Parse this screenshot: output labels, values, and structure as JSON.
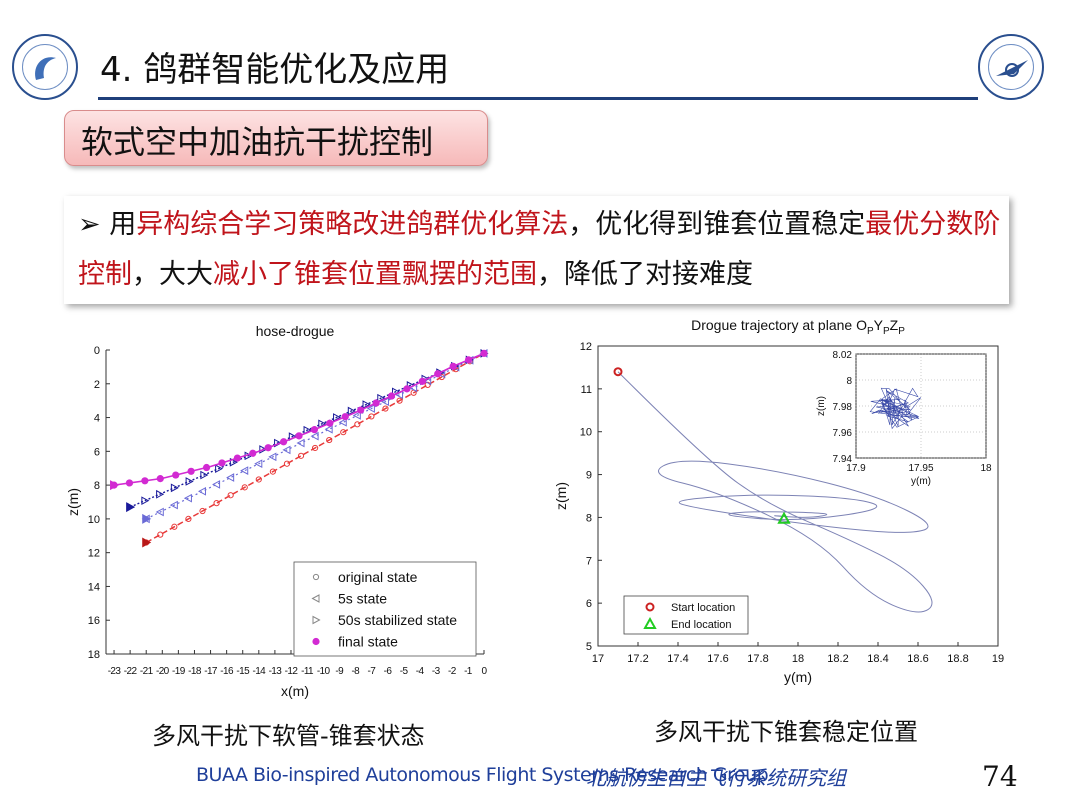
{
  "slide": {
    "title": "4. 鸽群智能优化及应用",
    "subtitle": "软式空中加油抗干扰控制",
    "bullet_marker": "➢",
    "bullet_parts": [
      {
        "text": "用",
        "red": false
      },
      {
        "text": "异构综合学习策略改进鸽群优化算法",
        "red": true
      },
      {
        "text": "，优化得到锥套位置稳定",
        "red": false
      },
      {
        "text": "最优分数阶控制",
        "red": true
      },
      {
        "text": "，大大",
        "red": false
      },
      {
        "text": "减小了锥套位置飘摆的范围",
        "red": true
      },
      {
        "text": "，降低了对接难度",
        "red": false
      }
    ],
    "caption_left": "多风干扰下软管-锥套状态",
    "caption_right": "多风干扰下锥套稳定位置",
    "footer_en": "BUAA Bio-inspired Autonomous Flight Systems Research Group",
    "footer_cn": "北航仿生自主飞行系统研究组",
    "page_number": "74"
  },
  "colors": {
    "accent_red": "#c0141b",
    "title_rule": "#1f3f7a",
    "footer_blue": "#1f3f9a",
    "original": "#e83a3a",
    "s5": "#6a6ad6",
    "s50": "#1a1a9a",
    "final": "#d22ad2",
    "start_marker": "#cc2222",
    "end_marker": "#22cc22",
    "trajectory": "#7d83b5"
  },
  "chart_data": [
    {
      "type": "line",
      "title": "hose-drogue",
      "xlabel": "x(m)",
      "ylabel": "z(m)",
      "xlim": [
        -23.5,
        0
      ],
      "ylim": [
        18,
        0
      ],
      "xticks": [
        -23,
        -22,
        -21,
        -20,
        -19,
        -18,
        -17,
        -16,
        -15,
        -14,
        -13,
        -12,
        -11,
        -10,
        -9,
        -8,
        -7,
        -6,
        -5,
        -4,
        -3,
        -2,
        -1,
        0
      ],
      "yticks": [
        0,
        2,
        4,
        6,
        8,
        10,
        12,
        14,
        16,
        18
      ],
      "legend_position": "bottom-right",
      "series": [
        {
          "name": "original state",
          "marker": "circle",
          "x": [
            -21,
            0
          ],
          "z": [
            11.4,
            0.2
          ]
        },
        {
          "name": "5s state",
          "marker": "triangle-left",
          "x": [
            -21,
            0
          ],
          "z": [
            10.0,
            0.2
          ]
        },
        {
          "name": "50s stabilized state",
          "marker": "triangle-right",
          "x": [
            -22,
            0
          ],
          "z": [
            9.3,
            0.2
          ]
        },
        {
          "name": "final state",
          "marker": "filled-circle",
          "x": [
            -23,
            -20,
            -17,
            -14,
            -11,
            -8,
            -5,
            -2,
            0
          ],
          "z": [
            8.0,
            7.6,
            6.9,
            6.0,
            4.9,
            3.7,
            2.4,
            1.0,
            0.2
          ]
        }
      ]
    },
    {
      "type": "line",
      "title": "Drogue trajectory at plane OPYPZP",
      "title_parts": [
        "Drogue trajectory at plane O",
        "P",
        "Y",
        "P",
        "Z",
        "P"
      ],
      "xlabel": "y(m)",
      "ylabel": "z(m)",
      "xlim": [
        17,
        19
      ],
      "ylim": [
        5,
        12
      ],
      "xticks": [
        17,
        17.2,
        17.4,
        17.6,
        17.8,
        18,
        18.2,
        18.4,
        18.6,
        18.8,
        19
      ],
      "yticks": [
        5,
        6,
        7,
        8,
        9,
        10,
        11,
        12
      ],
      "legend_position": "bottom-left",
      "start_location": {
        "label": "Start location",
        "y": 17.1,
        "z": 11.4
      },
      "end_location": {
        "label": "End location",
        "y": 17.93,
        "z": 7.97
      },
      "trajectory": {
        "path": [
          [
            17.1,
            11.4
          ],
          [
            17.55,
            9.3
          ],
          [
            17.85,
            8.3
          ],
          [
            18.25,
            7.5
          ],
          [
            18.55,
            6.8
          ],
          [
            18.7,
            6.0
          ],
          [
            18.6,
            5.7
          ],
          [
            18.35,
            6.2
          ],
          [
            18.1,
            7.5
          ],
          [
            17.6,
            8.6
          ],
          [
            17.25,
            9.0
          ],
          [
            17.4,
            9.4
          ],
          [
            17.9,
            9.1
          ],
          [
            18.4,
            8.5
          ],
          [
            18.7,
            7.8
          ],
          [
            18.55,
            7.6
          ],
          [
            18.1,
            7.8
          ],
          [
            17.5,
            8.2
          ],
          [
            17.35,
            8.4
          ],
          [
            17.8,
            8.55
          ],
          [
            18.3,
            8.45
          ],
          [
            18.45,
            8.2
          ],
          [
            18.0,
            7.9
          ],
          [
            17.6,
            8.05
          ],
          [
            17.75,
            8.15
          ],
          [
            18.2,
            8.1
          ],
          [
            18.05,
            7.98
          ],
          [
            17.85,
            8.05
          ],
          [
            17.95,
            8.02
          ]
        ]
      },
      "inset": {
        "xlabel": "y(m)",
        "ylabel": "z(m)",
        "xlim": [
          17.9,
          18
        ],
        "ylim": [
          7.94,
          8.02
        ],
        "xticks": [
          17.9,
          17.95,
          18
        ],
        "yticks": [
          7.94,
          7.96,
          7.98,
          8,
          8.02
        ],
        "cluster_center": [
          17.93,
          7.98
        ]
      }
    }
  ]
}
